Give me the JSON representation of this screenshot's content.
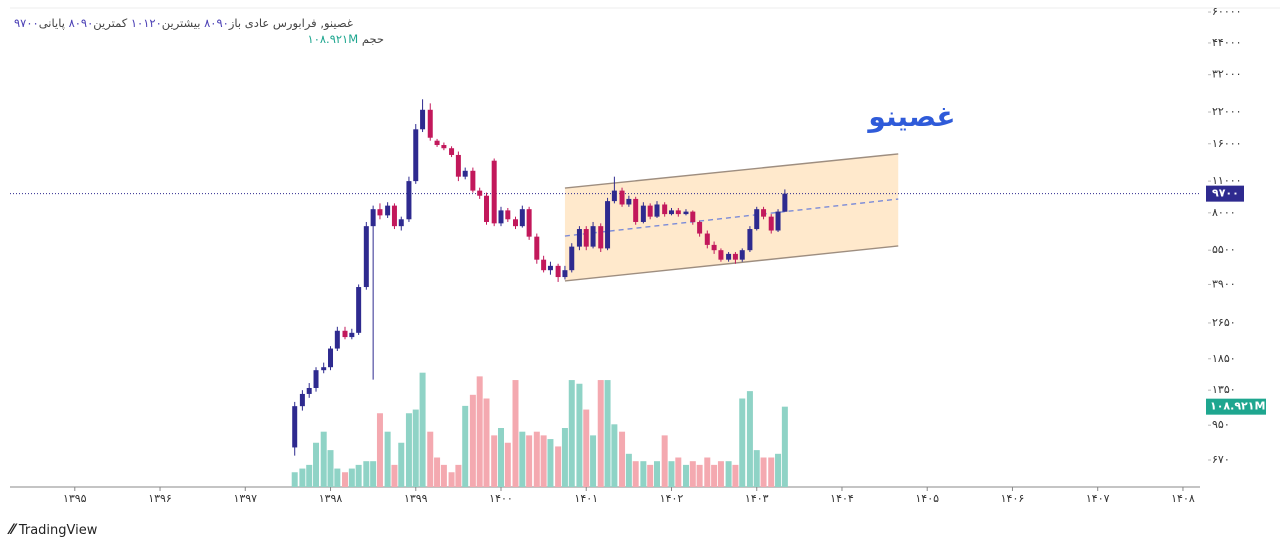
{
  "chart_data": {
    "type": "candlestick",
    "log_scale": true,
    "watermark": "غصینو",
    "header": {
      "symbol": "غصینو, فرابورس عادی",
      "open_label": "باز",
      "open": "۸۰۹۰",
      "high_label": "بیشترین",
      "high": "۱۰۱۲۰",
      "low_label": "کمترین",
      "low": "۸۰۹۰",
      "close_label": "پایانی",
      "close": "۹۷۰۰",
      "volume_label": "حجم",
      "volume": "۱۰۸.۹۲۱M"
    },
    "xlim": [
      1394.24,
      1408.2
    ],
    "xticks": [
      {
        "value": 1395,
        "label": "۱۳۹۵"
      },
      {
        "value": 1396,
        "label": "۱۳۹۶"
      },
      {
        "value": 1397,
        "label": "۱۳۹۷"
      },
      {
        "value": 1398,
        "label": "۱۳۹۸"
      },
      {
        "value": 1399,
        "label": "۱۳۹۹"
      },
      {
        "value": 1400,
        "label": "۱۴۰۰"
      },
      {
        "value": 1401,
        "label": "۱۴۰۱"
      },
      {
        "value": 1402,
        "label": "۱۴۰۲"
      },
      {
        "value": 1403,
        "label": "۱۴۰۳"
      },
      {
        "value": 1404,
        "label": "۱۴۰۴"
      },
      {
        "value": 1405,
        "label": "۱۴۰۵"
      },
      {
        "value": 1406,
        "label": "۱۴۰۶"
      },
      {
        "value": 1407,
        "label": "۱۴۰۷"
      },
      {
        "value": 1408,
        "label": "۱۴۰۸"
      }
    ],
    "ylim": [
      511,
      67700
    ],
    "yticks": [
      {
        "value": 60000,
        "label": "۶۰۰۰۰"
      },
      {
        "value": 44000,
        "label": "۴۴۰۰۰"
      },
      {
        "value": 32000,
        "label": "۳۲۰۰۰"
      },
      {
        "value": 22000,
        "label": "۲۲۰۰۰"
      },
      {
        "value": 16000,
        "label": "۱۶۰۰۰"
      },
      {
        "value": 11000,
        "label": "۱۱۰۰۰"
      },
      {
        "value": 8000,
        "label": "۸۰۰۰"
      },
      {
        "value": 5500,
        "label": "۵۵۰۰"
      },
      {
        "value": 3900,
        "label": "۳۹۰۰"
      },
      {
        "value": 2650,
        "label": "۲۶۵۰"
      },
      {
        "value": 1850,
        "label": "۱۸۵۰"
      },
      {
        "value": 1350,
        "label": "۱۳۵۰"
      },
      {
        "value": 950,
        "label": "۹۵۰"
      },
      {
        "value": 670,
        "label": "۶۷۰"
      }
    ],
    "up_color": "#2e2a8f",
    "down_color": "#c2185b",
    "volume_up_color": "#8fd3c6",
    "volume_down_color": "#f4a9b0",
    "volume_lim": [
      0,
      160
    ],
    "price_label": {
      "value": 9700,
      "label": "۹۷۰۰"
    },
    "volume_tag": {
      "value": 108.921,
      "label": "۱۰۸.۹۲۱M"
    },
    "channel": {
      "upper": [
        [
          1400.75,
          10260
        ],
        [
          1404.66,
          14450
        ]
      ],
      "lower": [
        [
          1400.75,
          4040
        ],
        [
          1404.66,
          5740
        ]
      ],
      "middle": [
        [
          1400.75,
          6340
        ],
        [
          1404.66,
          9190
        ]
      ]
    },
    "x": [
      1397.58,
      1397.67,
      1397.75,
      1397.83,
      1397.92,
      1398.0,
      1398.08,
      1398.17,
      1398.25,
      1398.33,
      1398.42,
      1398.5,
      1398.58,
      1398.67,
      1398.75,
      1398.83,
      1398.92,
      1399.0,
      1399.08,
      1399.17,
      1399.25,
      1399.33,
      1399.42,
      1399.5,
      1399.58,
      1399.67,
      1399.75,
      1399.83,
      1399.92,
      1400.0,
      1400.08,
      1400.17,
      1400.25,
      1400.33,
      1400.42,
      1400.5,
      1400.58,
      1400.67,
      1400.75,
      1400.83,
      1400.92,
      1401.0,
      1401.08,
      1401.17,
      1401.25,
      1401.33,
      1401.42,
      1401.5,
      1401.58,
      1401.67,
      1401.75,
      1401.83,
      1401.92,
      1402.0,
      1402.08,
      1402.17,
      1402.25,
      1402.33,
      1402.42,
      1402.5,
      1402.58,
      1402.67,
      1402.75,
      1402.83,
      1402.92,
      1403.0,
      1403.08,
      1403.17,
      1403.25,
      1403.33
    ],
    "candles": [
      [
        760,
        1200,
        700,
        1150
      ],
      [
        1150,
        1350,
        1100,
        1300
      ],
      [
        1300,
        1450,
        1250,
        1380
      ],
      [
        1380,
        1700,
        1330,
        1650
      ],
      [
        1650,
        1780,
        1600,
        1700
      ],
      [
        1700,
        2100,
        1650,
        2050
      ],
      [
        2050,
        2550,
        2000,
        2450
      ],
      [
        2450,
        2550,
        2250,
        2300
      ],
      [
        2300,
        2500,
        2250,
        2400
      ],
      [
        2400,
        3900,
        2350,
        3800
      ],
      [
        3800,
        7300,
        3700,
        7000
      ],
      [
        7000,
        8600,
        1500,
        8300
      ],
      [
        8300,
        8800,
        7500,
        7800
      ],
      [
        7800,
        8900,
        7600,
        8600
      ],
      [
        8600,
        8800,
        6800,
        7000
      ],
      [
        7000,
        7700,
        6700,
        7500
      ],
      [
        7500,
        11500,
        7300,
        11000
      ],
      [
        11000,
        19500,
        10700,
        18500
      ],
      [
        18500,
        25000,
        18000,
        22500
      ],
      [
        22500,
        24000,
        16500,
        17000
      ],
      [
        16500,
        16800,
        15500,
        15800
      ],
      [
        15800,
        16200,
        15000,
        15300
      ],
      [
        15300,
        15600,
        14000,
        14300
      ],
      [
        14300,
        14800,
        11000,
        11500
      ],
      [
        11500,
        12600,
        11200,
        12200
      ],
      [
        12200,
        12600,
        9800,
        10000
      ],
      [
        10000,
        10300,
        9200,
        9500
      ],
      [
        9500,
        9800,
        7100,
        7300
      ],
      [
        13500,
        13800,
        7000,
        7200
      ],
      [
        7200,
        8500,
        7000,
        8200
      ],
      [
        8200,
        8400,
        7300,
        7500
      ],
      [
        7500,
        7700,
        6800,
        7000
      ],
      [
        7000,
        8600,
        6900,
        8300
      ],
      [
        8300,
        8500,
        6100,
        6300
      ],
      [
        6300,
        6500,
        4800,
        5000
      ],
      [
        5000,
        5200,
        4400,
        4500
      ],
      [
        4500,
        4900,
        4300,
        4700
      ],
      [
        4700,
        4800,
        4000,
        4200
      ],
      [
        4200,
        4700,
        4100,
        4500
      ],
      [
        4500,
        5900,
        4400,
        5700
      ],
      [
        5700,
        7000,
        5500,
        6800
      ],
      [
        6800,
        7000,
        5500,
        5700
      ],
      [
        5700,
        7300,
        5600,
        7000
      ],
      [
        7000,
        7200,
        5400,
        5600
      ],
      [
        5600,
        9300,
        5500,
        9000
      ],
      [
        9000,
        11500,
        8800,
        10000
      ],
      [
        10000,
        10300,
        8500,
        8700
      ],
      [
        8700,
        9500,
        8500,
        9200
      ],
      [
        9200,
        9400,
        7100,
        7300
      ],
      [
        7300,
        8900,
        7200,
        8600
      ],
      [
        8600,
        8800,
        7500,
        7700
      ],
      [
        7700,
        9000,
        7600,
        8700
      ],
      [
        8700,
        8900,
        7700,
        7900
      ],
      [
        7900,
        8400,
        7800,
        8200
      ],
      [
        8200,
        8400,
        7700,
        7900
      ],
      [
        7900,
        8300,
        7800,
        8100
      ],
      [
        8100,
        8200,
        7100,
        7300
      ],
      [
        7300,
        7400,
        6300,
        6500
      ],
      [
        6500,
        6700,
        5600,
        5800
      ],
      [
        5800,
        6000,
        5300,
        5500
      ],
      [
        5500,
        5600,
        4900,
        5000
      ],
      [
        5000,
        5400,
        4900,
        5300
      ],
      [
        5300,
        5400,
        4800,
        5000
      ],
      [
        5000,
        5600,
        4900,
        5500
      ],
      [
        5500,
        7000,
        5400,
        6800
      ],
      [
        6800,
        8500,
        6700,
        8300
      ],
      [
        8300,
        8500,
        7500,
        7700
      ],
      [
        7700,
        7900,
        6500,
        6700
      ],
      [
        6700,
        8300,
        6600,
        8100
      ],
      [
        8090,
        10120,
        8090,
        9700
      ]
    ],
    "volumes": [
      20,
      25,
      30,
      60,
      75,
      50,
      25,
      20,
      25,
      30,
      35,
      35,
      100,
      75,
      30,
      60,
      100,
      105,
      155,
      75,
      40,
      30,
      20,
      30,
      110,
      125,
      150,
      120,
      70,
      80,
      60,
      145,
      75,
      70,
      75,
      70,
      65,
      55,
      80,
      145,
      140,
      105,
      70,
      145,
      145,
      85,
      75,
      45,
      35,
      35,
      30,
      35,
      70,
      35,
      40,
      30,
      35,
      30,
      40,
      30,
      35,
      35,
      30,
      120,
      130,
      50,
      40,
      40,
      45,
      108.921
    ]
  },
  "footer": {
    "brand": "TradingView"
  }
}
